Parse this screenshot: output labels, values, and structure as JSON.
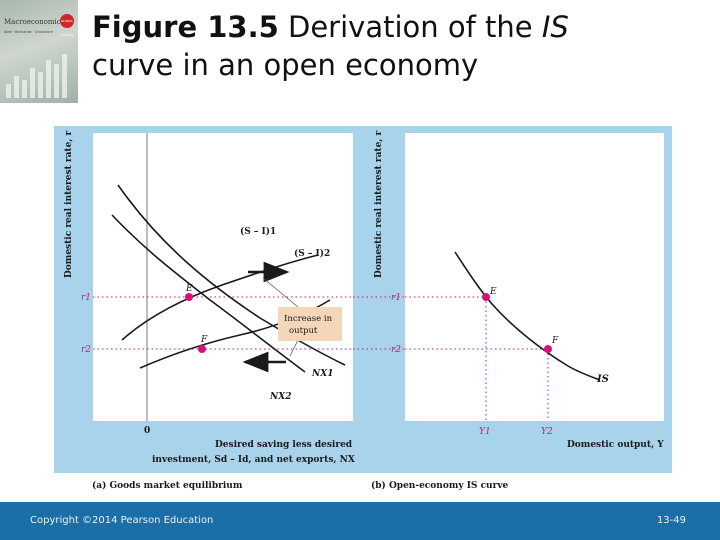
{
  "slide": {
    "title_bold": "Figure 13.5",
    "title_rest_1": " Derivation of the ",
    "title_italic": "IS",
    "title_line2": "curve in an open economy",
    "footer_copyright": "Copyright ©2014 Pearson Education",
    "footer_page": "13-49",
    "cover": {
      "title": "Macroeconomics",
      "subtitle": "Abel · Bernanke · Croushore",
      "badge": "GLOBAL EDITION"
    }
  },
  "colors": {
    "panel_bg": "#a8d3ea",
    "plot_bg": "#ffffff",
    "curve": "#1a1a1a",
    "point": "#d5127a",
    "dotted": "#d5127a",
    "callout_bg": "#f3d7b8",
    "footer_bg": "#1a6fa8"
  },
  "panel_a": {
    "caption": "(a) Goods market equilibrium",
    "y_axis_label": "Domestic real interest rate, r",
    "x_axis_label_line1": "Desired saving less desired",
    "x_axis_label_line2": "investment, Sd – Id, and net exports, NX",
    "zero_label": "0",
    "tick_r1": "r1",
    "tick_r2": "r2",
    "curve_s1": "(S – I)1",
    "curve_s2": "(S – I)2",
    "curve_nx1": "NX1",
    "curve_nx2": "NX2",
    "point_e": "E",
    "point_f": "F",
    "callout_line1": "Increase in",
    "callout_line2": "output"
  },
  "panel_b": {
    "caption": "(b) Open-economy IS curve",
    "y_axis_label": "Domestic real interest rate, r",
    "x_axis_label": "Domestic output, Y",
    "tick_r1": "r1",
    "tick_r2": "r2",
    "tick_y1": "Y1",
    "tick_y2": "Y2",
    "point_e": "E",
    "point_f": "F",
    "curve_is": "IS"
  }
}
